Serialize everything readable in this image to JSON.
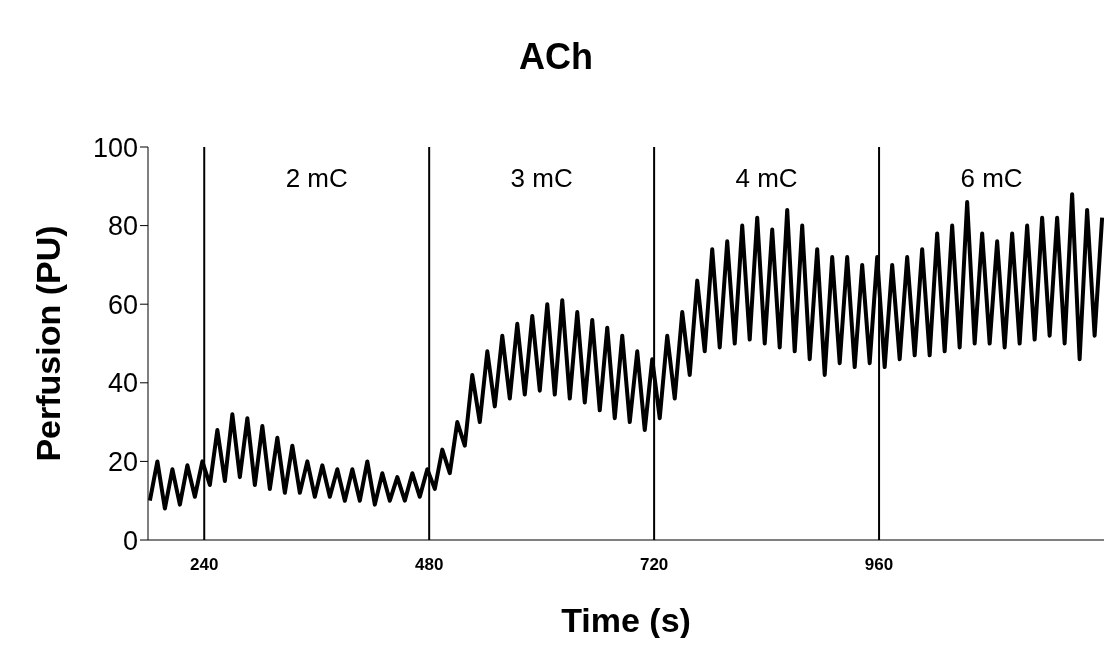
{
  "chart_data": {
    "type": "line",
    "title": "ACh",
    "xlabel": "Time (s)",
    "ylabel": "Perfusion (PU)",
    "x": [
      182,
      190,
      198,
      206,
      214,
      222,
      230,
      238,
      246,
      254,
      262,
      270,
      278,
      286,
      294,
      302,
      310,
      318,
      326,
      334,
      342,
      350,
      358,
      366,
      374,
      382,
      390,
      398,
      406,
      414,
      422,
      430,
      438,
      446,
      454,
      462,
      470,
      478,
      486,
      494,
      502,
      510,
      518,
      526,
      534,
      542,
      550,
      558,
      566,
      574,
      582,
      590,
      598,
      606,
      614,
      622,
      630,
      638,
      646,
      654,
      662,
      670,
      678,
      686,
      694,
      702,
      710,
      718,
      726,
      734,
      742,
      750,
      758,
      766,
      774,
      782,
      790,
      798,
      806,
      814,
      822,
      830,
      838,
      846,
      854,
      862,
      870,
      878,
      886,
      894,
      902,
      910,
      918,
      926,
      934,
      942,
      950,
      958,
      966,
      974,
      982,
      990,
      998,
      1006,
      1014,
      1022,
      1030,
      1038,
      1046,
      1054,
      1062,
      1070,
      1078,
      1086,
      1094,
      1102,
      1110,
      1118,
      1126,
      1134,
      1142,
      1150,
      1158,
      1166,
      1174,
      1182,
      1190,
      1198
    ],
    "series": [
      {
        "color": "#000000",
        "values": [
          10,
          20,
          8,
          18,
          9,
          19,
          11,
          20,
          14,
          28,
          15,
          32,
          16,
          31,
          14,
          29,
          13,
          26,
          12,
          24,
          12,
          20,
          11,
          19,
          11,
          18,
          10,
          18,
          10,
          20,
          9,
          17,
          10,
          16,
          10,
          17,
          11,
          18,
          13,
          23,
          17,
          30,
          24,
          42,
          30,
          48,
          34,
          52,
          36,
          55,
          37,
          57,
          38,
          60,
          37,
          61,
          36,
          58,
          35,
          56,
          33,
          54,
          31,
          52,
          30,
          48,
          28,
          46,
          31,
          52,
          36,
          58,
          42,
          66,
          48,
          74,
          49,
          76,
          50,
          80,
          51,
          82,
          50,
          79,
          49,
          84,
          48,
          80,
          46,
          74,
          42,
          72,
          45,
          72,
          44,
          70,
          45,
          72,
          44,
          70,
          46,
          72,
          47,
          74,
          47,
          78,
          48,
          80,
          49,
          86,
          50,
          78,
          50,
          76,
          49,
          78,
          50,
          80,
          51,
          82,
          52,
          82,
          50,
          88,
          46,
          84,
          52,
          82
        ]
      }
    ],
    "xlim": [
      180,
      1200
    ],
    "xticks": [
      240,
      480,
      720,
      960
    ],
    "ylim": [
      0,
      100
    ],
    "yticks": [
      0,
      20,
      40,
      60,
      80,
      100
    ],
    "ref_lines": [
      {
        "axis": "x",
        "value": 240,
        "color": "#000000"
      },
      {
        "axis": "x",
        "value": 480,
        "color": "#000000"
      },
      {
        "axis": "x",
        "value": 720,
        "color": "#000000"
      },
      {
        "axis": "x",
        "value": 960,
        "color": "#000000"
      }
    ],
    "annotations": [
      "2 mC",
      "3 mC",
      "4 mC",
      "6 mC"
    ],
    "grid": false,
    "legend": false,
    "marker": "none",
    "line_style": "solid"
  }
}
